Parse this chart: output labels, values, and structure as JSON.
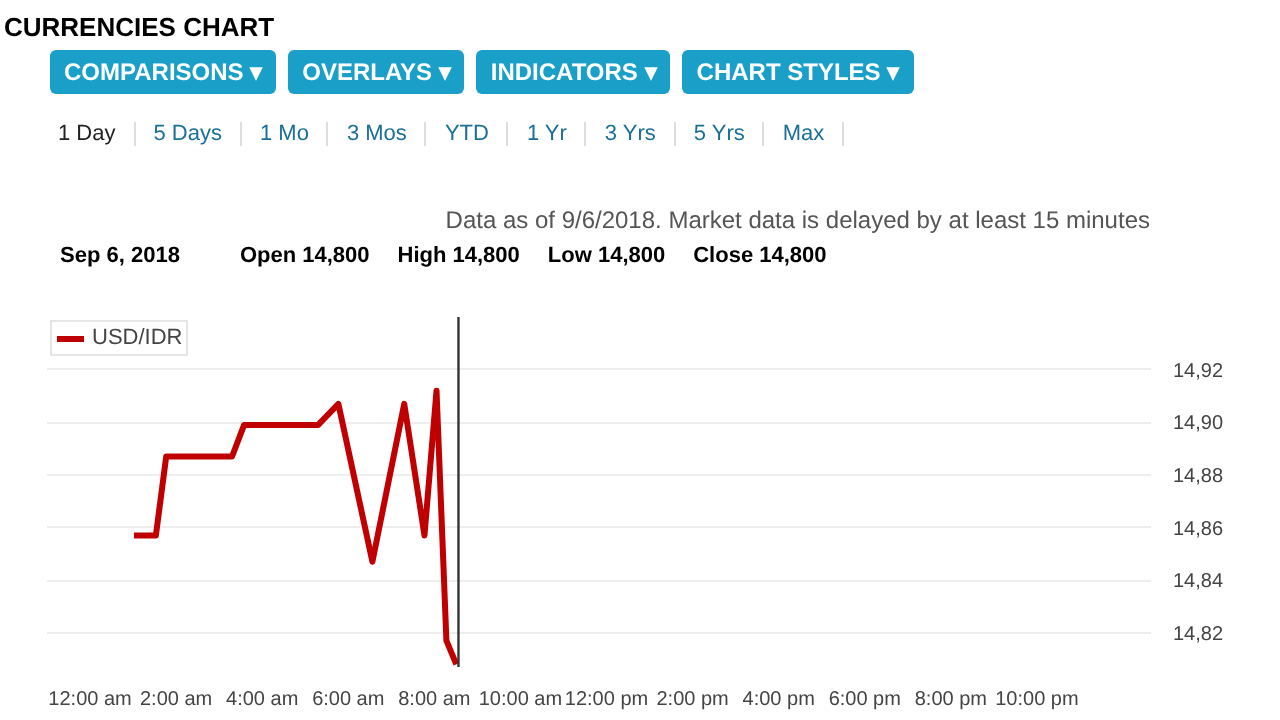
{
  "chart_data": {
    "type": "line",
    "title": "CURRENCIES CHART",
    "annotations": [
      "COMPARISONS ▾",
      "OVERLAYS ▾",
      "INDICATORS ▾",
      "CHART STYLES ▾",
      "1 Day",
      "5 Days",
      "1 Mo",
      "3 Mos",
      "YTD",
      "1 Yr",
      "3 Yrs",
      "5 Yrs",
      "Max",
      "Data as of 9/6/2018. Market data is delayed by at least 15 minutes",
      "Sep 6, 2018",
      "Open 14,800",
      "High 14,800",
      "Low 14,800",
      "Close 14,800"
    ],
    "x": [
      1.02,
      1.53,
      1.77,
      3.3,
      3.58,
      5.3,
      5.77,
      6.56,
      7.3,
      7.77,
      8.05,
      8.28,
      8.51
    ],
    "series": [
      {
        "name": "USD/IDR",
        "color": "#c00000",
        "values": [
          14.857,
          14.857,
          14.887,
          14.887,
          14.899,
          14.899,
          14.907,
          14.847,
          14.907,
          14.857,
          14.912,
          14.817,
          14.808
        ]
      }
    ],
    "xlim": [
      -1,
      24.65
    ],
    "xticks": [
      {
        "value": 0,
        "label": "12:00 am"
      },
      {
        "value": 2,
        "label": "2:00 am"
      },
      {
        "value": 4,
        "label": "4:00 am"
      },
      {
        "value": 6,
        "label": "6:00 am"
      },
      {
        "value": 8,
        "label": "8:00 am"
      },
      {
        "value": 10,
        "label": "10:00 am"
      },
      {
        "value": 12,
        "label": "12:00 pm"
      },
      {
        "value": 14,
        "label": "2:00 pm"
      },
      {
        "value": 16,
        "label": "4:00 pm"
      },
      {
        "value": 18,
        "label": "6:00 pm"
      },
      {
        "value": 20,
        "label": "8:00 pm"
      },
      {
        "value": 22,
        "label": "10:00 pm"
      }
    ],
    "ylim": [
      14.807,
      14.94
    ],
    "yticks": [
      {
        "value": 14.82,
        "label": "14,82"
      },
      {
        "value": 14.84,
        "label": "14,84"
      },
      {
        "value": 14.86,
        "label": "14,86"
      },
      {
        "value": 14.88,
        "label": "14,88"
      },
      {
        "value": 14.9,
        "label": "14,90"
      },
      {
        "value": 14.92,
        "label": "14,92"
      }
    ],
    "ref_lines": [
      {
        "axis": "x",
        "value": 8.56,
        "color": "#333333"
      }
    ],
    "grid": "y",
    "legend": "top left",
    "marker": "none",
    "line_style": "solid"
  }
}
